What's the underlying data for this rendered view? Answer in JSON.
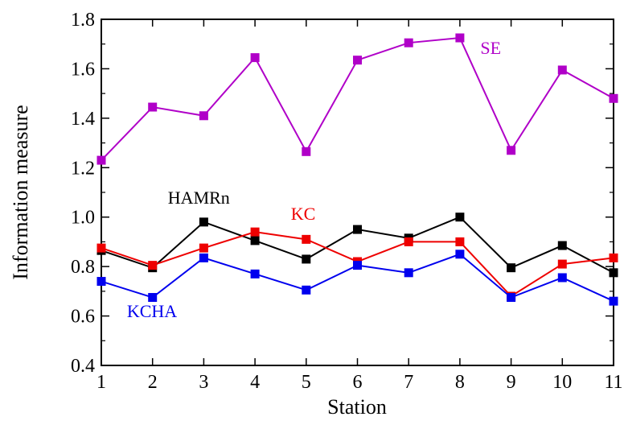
{
  "chart_data": {
    "type": "line",
    "xlabel": "Station",
    "ylabel": "Information measure",
    "x": [
      1,
      2,
      3,
      4,
      5,
      6,
      7,
      8,
      9,
      10,
      11
    ],
    "xlim": [
      1,
      11
    ],
    "ylim": [
      0.4,
      1.8
    ],
    "xticks": [
      "1",
      "2",
      "3",
      "4",
      "5",
      "6",
      "7",
      "8",
      "9",
      "10",
      "11"
    ],
    "yticks": [
      "0.4",
      "0.6",
      "0.8",
      "1.0",
      "1.2",
      "1.4",
      "1.6",
      "1.8"
    ],
    "grid": false,
    "legend": "none",
    "series": [
      {
        "name": "SE",
        "color": "#b000c8",
        "values": [
          1.23,
          1.445,
          1.41,
          1.645,
          1.265,
          1.635,
          1.705,
          1.725,
          1.27,
          1.595,
          1.48
        ]
      },
      {
        "name": "HAMRn",
        "color": "#000000",
        "values": [
          0.865,
          0.795,
          0.98,
          0.905,
          0.83,
          0.95,
          0.915,
          1.0,
          0.795,
          0.885,
          0.775
        ]
      },
      {
        "name": "KC",
        "color": "#ee0000",
        "values": [
          0.875,
          0.805,
          0.875,
          0.94,
          0.91,
          0.82,
          0.9,
          0.9,
          0.68,
          0.81,
          0.835
        ]
      },
      {
        "name": "KCHA",
        "color": "#0000ee",
        "values": [
          0.74,
          0.675,
          0.835,
          0.77,
          0.705,
          0.805,
          0.775,
          0.85,
          0.675,
          0.755,
          0.66
        ]
      }
    ]
  }
}
